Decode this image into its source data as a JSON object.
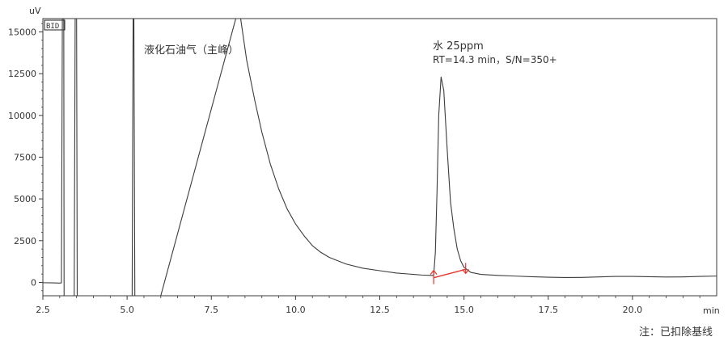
{
  "chart_data": {
    "type": "line",
    "title": "",
    "xlabel": "min",
    "ylabel": "uV",
    "detector_label": "BID",
    "xlim": [
      2.5,
      22.5
    ],
    "ylim": [
      -800,
      15800
    ],
    "x_ticks": [
      2.5,
      5.0,
      7.5,
      10.0,
      12.5,
      15.0,
      17.5,
      20.0
    ],
    "x_tick_labels": [
      "2.5",
      "5.0",
      "7.5",
      "10.0",
      "12.5",
      "15.0",
      "17.5",
      "20.0"
    ],
    "y_ticks": [
      0,
      2500,
      5000,
      7500,
      10000,
      12500,
      15000
    ],
    "y_tick_labels": [
      "0",
      "2500",
      "5000",
      "7500",
      "10000",
      "12500",
      "15000"
    ],
    "grid": false,
    "annotations": {
      "main_peak": "液化石油气（主峰）",
      "water_peak_line1": "水 25ppm",
      "water_peak_line2": "RT=14.3 min，S/N=350+"
    },
    "note": "注：已扣除基线",
    "baseline_marker": {
      "start": [
        14.1,
        280
      ],
      "end": [
        15.05,
        780
      ],
      "color": "#e8342c"
    },
    "series": [
      {
        "line_color": "#3c3c3c",
        "points": [
          [
            2.5,
            -20
          ],
          [
            2.8,
            -30
          ],
          [
            3.0,
            -40
          ],
          [
            3.05,
            -30
          ],
          [
            3.08,
            16500
          ],
          [
            3.12,
            16500
          ],
          [
            3.13,
            -800
          ],
          [
            3.2,
            -800
          ],
          [
            3.35,
            -800
          ],
          [
            3.43,
            -800
          ],
          [
            3.46,
            16500
          ],
          [
            3.5,
            16500
          ],
          [
            3.52,
            -800
          ],
          [
            5.1,
            -800
          ],
          [
            5.15,
            -800
          ],
          [
            5.18,
            16500
          ],
          [
            5.2,
            16500
          ],
          [
            5.23,
            -800
          ],
          [
            6.0,
            -800
          ],
          [
            8.32,
            16500
          ],
          [
            8.55,
            13300
          ],
          [
            8.8,
            10800
          ],
          [
            9.0,
            9000
          ],
          [
            9.25,
            7100
          ],
          [
            9.5,
            5600
          ],
          [
            9.75,
            4400
          ],
          [
            10.0,
            3500
          ],
          [
            10.25,
            2800
          ],
          [
            10.5,
            2200
          ],
          [
            10.75,
            1800
          ],
          [
            11.0,
            1500
          ],
          [
            11.5,
            1100
          ],
          [
            12.0,
            850
          ],
          [
            12.5,
            700
          ],
          [
            13.0,
            560
          ],
          [
            13.5,
            480
          ],
          [
            13.75,
            440
          ],
          [
            14.0,
            420
          ],
          [
            14.1,
            420
          ],
          [
            14.15,
            1800
          ],
          [
            14.2,
            5500
          ],
          [
            14.25,
            10000
          ],
          [
            14.32,
            12300
          ],
          [
            14.4,
            11500
          ],
          [
            14.5,
            8000
          ],
          [
            14.6,
            4800
          ],
          [
            14.7,
            3200
          ],
          [
            14.8,
            2000
          ],
          [
            14.9,
            1300
          ],
          [
            15.0,
            900
          ],
          [
            15.2,
            600
          ],
          [
            15.5,
            480
          ],
          [
            16.0,
            420
          ],
          [
            16.5,
            380
          ],
          [
            17.0,
            340
          ],
          [
            17.5,
            310
          ],
          [
            18.0,
            290
          ],
          [
            18.5,
            300
          ],
          [
            19.0,
            330
          ],
          [
            19.5,
            360
          ],
          [
            20.0,
            360
          ],
          [
            20.5,
            340
          ],
          [
            21.0,
            320
          ],
          [
            21.5,
            330
          ],
          [
            22.0,
            360
          ],
          [
            22.5,
            380
          ]
        ]
      }
    ]
  }
}
